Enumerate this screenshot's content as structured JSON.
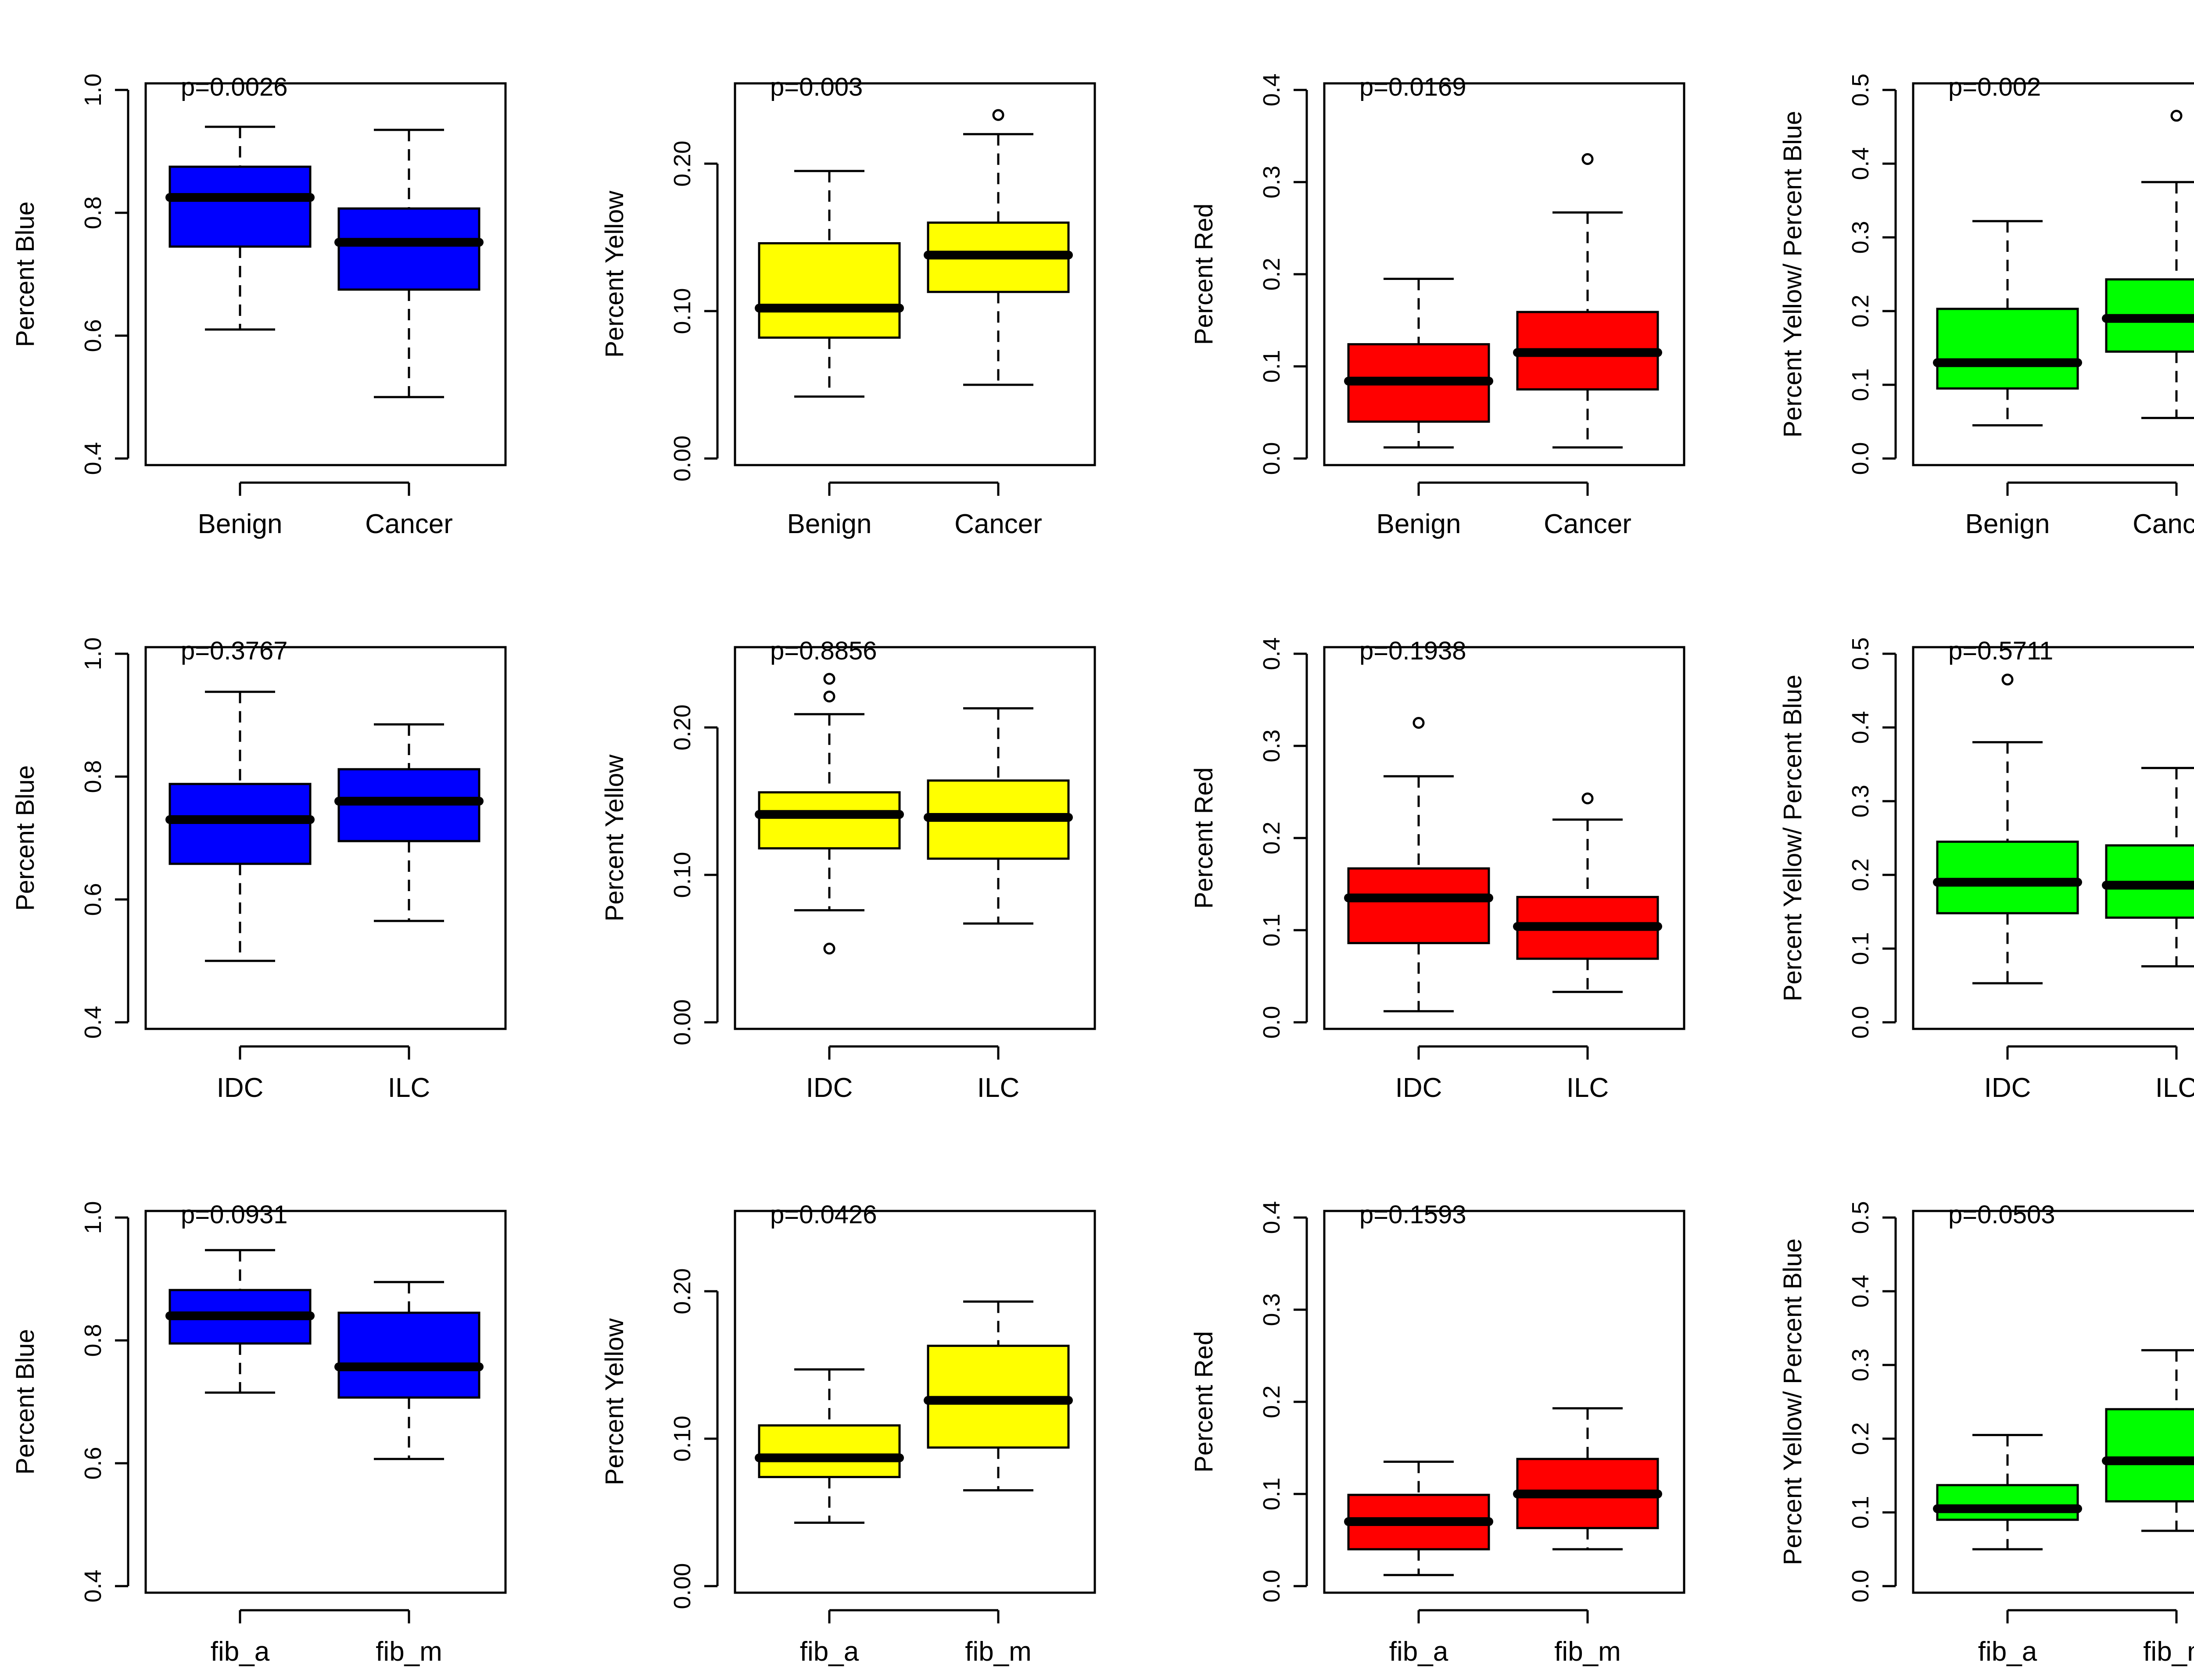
{
  "colors": {
    "Percent Blue": "#0000FF",
    "Percent Yellow": "#FFFF00",
    "Percent Red": "#FF0000",
    "Percent Yellow/ Percent Blue": "#00FF00"
  },
  "chart_data": [
    {
      "type": "box",
      "ylabel": "Percent Blue",
      "pvalue": "p=0.0026",
      "ylim": [
        0.4,
        1.0
      ],
      "yticks": [
        "0.4",
        "0.6",
        "0.8",
        "1.0"
      ],
      "categories": [
        "Benign",
        "Cancer"
      ],
      "boxes": [
        {
          "whisker_low": 0.61,
          "q1": 0.745,
          "median": 0.825,
          "q3": 0.875,
          "whisker_high": 0.94,
          "outliers": []
        },
        {
          "whisker_low": 0.5,
          "q1": 0.675,
          "median": 0.752,
          "q3": 0.807,
          "whisker_high": 0.935,
          "outliers": []
        }
      ]
    },
    {
      "type": "box",
      "ylabel": "Percent Yellow",
      "pvalue": "p=0.003",
      "ylim": [
        0.0,
        0.25
      ],
      "yticks": [
        "0.00",
        "0.10",
        "0.20"
      ],
      "categories": [
        "Benign",
        "Cancer"
      ],
      "boxes": [
        {
          "whisker_low": 0.042,
          "q1": 0.082,
          "median": 0.102,
          "q3": 0.146,
          "whisker_high": 0.195,
          "outliers": []
        },
        {
          "whisker_low": 0.05,
          "q1": 0.113,
          "median": 0.138,
          "q3": 0.16,
          "whisker_high": 0.22,
          "outliers": [
            0.233
          ]
        }
      ]
    },
    {
      "type": "box",
      "ylabel": "Percent Red",
      "pvalue": "p=0.0169",
      "ylim": [
        0.0,
        0.4
      ],
      "yticks": [
        "0.0",
        "0.1",
        "0.2",
        "0.3",
        "0.4"
      ],
      "categories": [
        "Benign",
        "Cancer"
      ],
      "boxes": [
        {
          "whisker_low": 0.012,
          "q1": 0.04,
          "median": 0.084,
          "q3": 0.124,
          "whisker_high": 0.195,
          "outliers": []
        },
        {
          "whisker_low": 0.012,
          "q1": 0.075,
          "median": 0.115,
          "q3": 0.159,
          "whisker_high": 0.267,
          "outliers": [
            0.325
          ]
        }
      ]
    },
    {
      "type": "box",
      "ylabel": "Percent Yellow/ Percent Blue",
      "pvalue": "p=0.002",
      "ylim": [
        0.0,
        0.5
      ],
      "yticks": [
        "0.0",
        "0.1",
        "0.2",
        "0.3",
        "0.4",
        "0.5"
      ],
      "categories": [
        "Benign",
        "Cancer"
      ],
      "boxes": [
        {
          "whisker_low": 0.045,
          "q1": 0.095,
          "median": 0.13,
          "q3": 0.203,
          "whisker_high": 0.322,
          "outliers": []
        },
        {
          "whisker_low": 0.055,
          "q1": 0.145,
          "median": 0.19,
          "q3": 0.243,
          "whisker_high": 0.375,
          "outliers": [
            0.465
          ]
        }
      ]
    },
    {
      "type": "box",
      "ylabel": "Percent Blue",
      "pvalue": "p=0.3767",
      "ylim": [
        0.4,
        1.0
      ],
      "yticks": [
        "0.4",
        "0.6",
        "0.8",
        "1.0"
      ],
      "categories": [
        "IDC",
        "ILC"
      ],
      "boxes": [
        {
          "whisker_low": 0.5,
          "q1": 0.658,
          "median": 0.73,
          "q3": 0.788,
          "whisker_high": 0.938,
          "outliers": []
        },
        {
          "whisker_low": 0.565,
          "q1": 0.695,
          "median": 0.76,
          "q3": 0.812,
          "whisker_high": 0.885,
          "outliers": []
        }
      ]
    },
    {
      "type": "box",
      "ylabel": "Percent Yellow",
      "pvalue": "p=0.8856",
      "ylim": [
        0.0,
        0.25
      ],
      "yticks": [
        "0.00",
        "0.10",
        "0.20"
      ],
      "categories": [
        "IDC",
        "ILC"
      ],
      "boxes": [
        {
          "whisker_low": 0.076,
          "q1": 0.118,
          "median": 0.141,
          "q3": 0.156,
          "whisker_high": 0.209,
          "outliers": [
            0.221,
            0.233,
            0.05
          ]
        },
        {
          "whisker_low": 0.067,
          "q1": 0.111,
          "median": 0.139,
          "q3": 0.164,
          "whisker_high": 0.213,
          "outliers": []
        }
      ]
    },
    {
      "type": "box",
      "ylabel": "Percent Red",
      "pvalue": "p=0.1938",
      "ylim": [
        0.0,
        0.4
      ],
      "yticks": [
        "0.0",
        "0.1",
        "0.2",
        "0.3",
        "0.4"
      ],
      "categories": [
        "IDC",
        "ILC"
      ],
      "boxes": [
        {
          "whisker_low": 0.012,
          "q1": 0.086,
          "median": 0.135,
          "q3": 0.167,
          "whisker_high": 0.267,
          "outliers": [
            0.325
          ]
        },
        {
          "whisker_low": 0.033,
          "q1": 0.069,
          "median": 0.104,
          "q3": 0.136,
          "whisker_high": 0.22,
          "outliers": [
            0.243
          ]
        }
      ]
    },
    {
      "type": "box",
      "ylabel": "Percent Yellow/ Percent Blue",
      "pvalue": "p=0.5711",
      "ylim": [
        0.0,
        0.5
      ],
      "yticks": [
        "0.0",
        "0.1",
        "0.2",
        "0.3",
        "0.4",
        "0.5"
      ],
      "categories": [
        "IDC",
        "ILC"
      ],
      "boxes": [
        {
          "whisker_low": 0.053,
          "q1": 0.148,
          "median": 0.19,
          "q3": 0.245,
          "whisker_high": 0.38,
          "outliers": [
            0.465
          ]
        },
        {
          "whisker_low": 0.076,
          "q1": 0.142,
          "median": 0.186,
          "q3": 0.24,
          "whisker_high": 0.345,
          "outliers": []
        }
      ]
    },
    {
      "type": "box",
      "ylabel": "Percent Blue",
      "pvalue": "p=0.0931",
      "ylim": [
        0.4,
        1.0
      ],
      "yticks": [
        "0.4",
        "0.6",
        "0.8",
        "1.0"
      ],
      "categories": [
        "fib_a",
        "fib_m"
      ],
      "boxes": [
        {
          "whisker_low": 0.715,
          "q1": 0.795,
          "median": 0.84,
          "q3": 0.882,
          "whisker_high": 0.947,
          "outliers": []
        },
        {
          "whisker_low": 0.607,
          "q1": 0.707,
          "median": 0.757,
          "q3": 0.845,
          "whisker_high": 0.895,
          "outliers": []
        }
      ]
    },
    {
      "type": "box",
      "ylabel": "Percent Yellow",
      "pvalue": "p=0.0426",
      "ylim": [
        0.0,
        0.25
      ],
      "yticks": [
        "0.00",
        "0.10",
        "0.20"
      ],
      "categories": [
        "fib_a",
        "fib_m"
      ],
      "boxes": [
        {
          "whisker_low": 0.043,
          "q1": 0.074,
          "median": 0.087,
          "q3": 0.109,
          "whisker_high": 0.147,
          "outliers": []
        },
        {
          "whisker_low": 0.065,
          "q1": 0.094,
          "median": 0.126,
          "q3": 0.163,
          "whisker_high": 0.193,
          "outliers": []
        }
      ]
    },
    {
      "type": "box",
      "ylabel": "Percent Red",
      "pvalue": "p=0.1593",
      "ylim": [
        0.0,
        0.4
      ],
      "yticks": [
        "0.0",
        "0.1",
        "0.2",
        "0.3",
        "0.4"
      ],
      "categories": [
        "fib_a",
        "fib_m"
      ],
      "boxes": [
        {
          "whisker_low": 0.012,
          "q1": 0.04,
          "median": 0.07,
          "q3": 0.099,
          "whisker_high": 0.135,
          "outliers": []
        },
        {
          "whisker_low": 0.04,
          "q1": 0.063,
          "median": 0.1,
          "q3": 0.138,
          "whisker_high": 0.193,
          "outliers": []
        }
      ]
    },
    {
      "type": "box",
      "ylabel": "Percent Yellow/ Percent Blue",
      "pvalue": "p=0.0503",
      "ylim": [
        0.0,
        0.5
      ],
      "yticks": [
        "0.0",
        "0.1",
        "0.2",
        "0.3",
        "0.4",
        "0.5"
      ],
      "categories": [
        "fib_a",
        "fib_m"
      ],
      "boxes": [
        {
          "whisker_low": 0.05,
          "q1": 0.09,
          "median": 0.105,
          "q3": 0.137,
          "whisker_high": 0.205,
          "outliers": []
        },
        {
          "whisker_low": 0.075,
          "q1": 0.115,
          "median": 0.17,
          "q3": 0.24,
          "whisker_high": 0.32,
          "outliers": []
        }
      ]
    }
  ]
}
